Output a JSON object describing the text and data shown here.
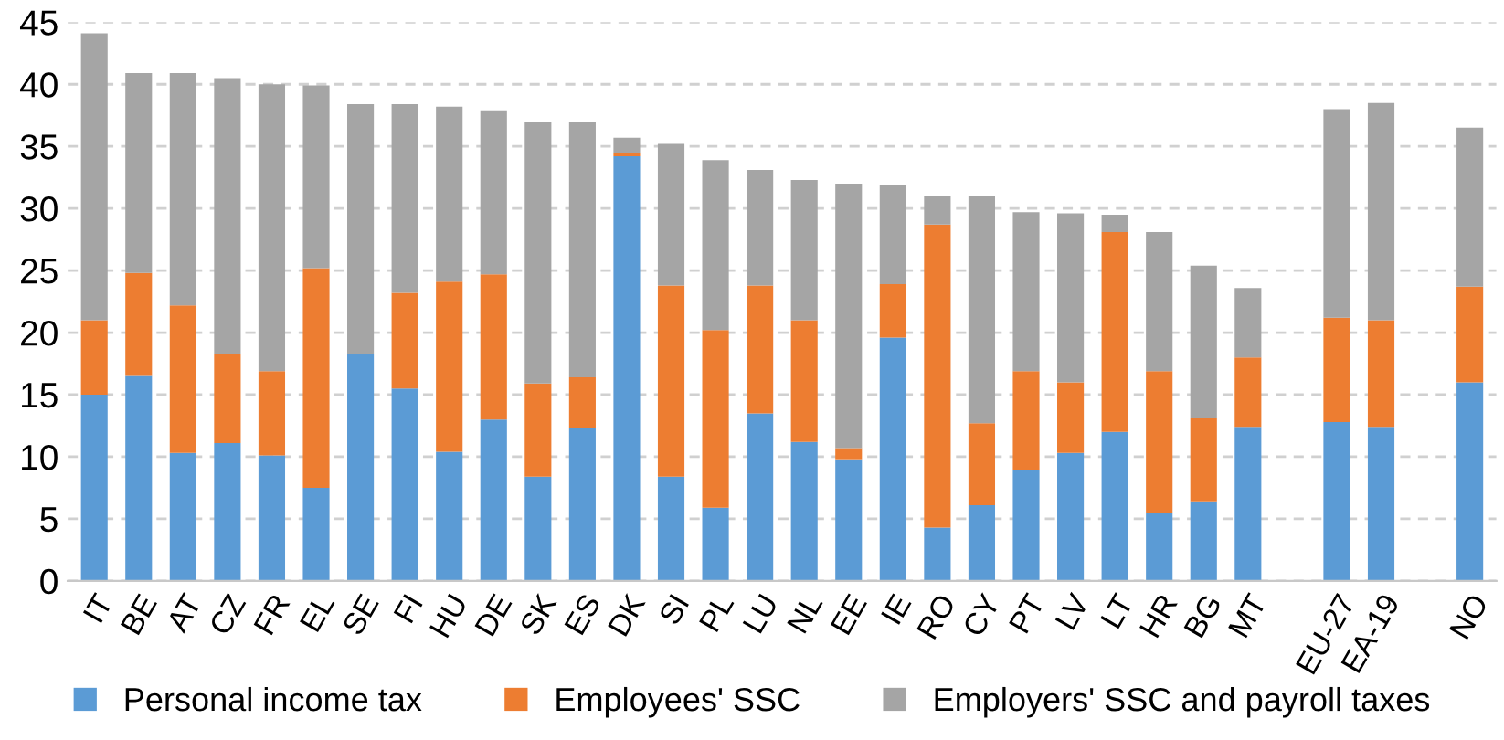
{
  "chart_data": {
    "type": "bar",
    "stacked": true,
    "categories": [
      "IT",
      "BE",
      "AT",
      "CZ",
      "FR",
      "EL",
      "SE",
      "FI",
      "HU",
      "DE",
      "SK",
      "ES",
      "DK",
      "SI",
      "PL",
      "LU",
      "NL",
      "EE",
      "IE",
      "RO",
      "CY",
      "PT",
      "LV",
      "LT",
      "HR",
      "BG",
      "MT",
      null,
      "EU-27",
      "EA-19",
      null,
      "NO"
    ],
    "series": [
      {
        "name": "Personal income tax",
        "color": "#5b9bd5",
        "values": [
          15.0,
          16.5,
          10.3,
          11.1,
          10.1,
          7.5,
          18.3,
          15.5,
          10.4,
          13.0,
          8.4,
          12.3,
          34.2,
          8.4,
          5.9,
          13.5,
          11.2,
          9.8,
          19.6,
          4.3,
          6.1,
          8.9,
          10.3,
          12.0,
          5.5,
          6.4,
          12.4,
          null,
          12.8,
          12.4,
          null,
          16.0
        ]
      },
      {
        "name": "Employees' SSC",
        "color": "#ed7d31",
        "values": [
          6.0,
          8.3,
          11.9,
          7.2,
          6.8,
          17.7,
          0,
          7.7,
          13.7,
          11.7,
          7.5,
          4.1,
          0.3,
          15.4,
          14.3,
          10.3,
          9.8,
          0.9,
          4.3,
          24.4,
          6.6,
          8.0,
          5.7,
          16.1,
          11.4,
          6.7,
          5.6,
          null,
          8.4,
          8.6,
          null,
          7.7
        ]
      },
      {
        "name": "Employers' SSC and payroll taxes",
        "color": "#a5a5a5",
        "values": [
          23.1,
          16.1,
          18.7,
          22.2,
          23.1,
          14.7,
          20.1,
          15.2,
          14.1,
          13.2,
          21.1,
          20.6,
          1.2,
          11.4,
          13.7,
          9.3,
          11.3,
          21.3,
          8.0,
          2.3,
          18.3,
          12.8,
          13.6,
          1.4,
          11.2,
          12.3,
          5.6,
          null,
          16.8,
          17.5,
          null,
          12.8
        ]
      }
    ],
    "ylim": [
      0,
      45
    ],
    "yticks": [
      0,
      5,
      10,
      15,
      20,
      25,
      30,
      35,
      40,
      45
    ],
    "grid": "y",
    "legend": "bottom"
  }
}
